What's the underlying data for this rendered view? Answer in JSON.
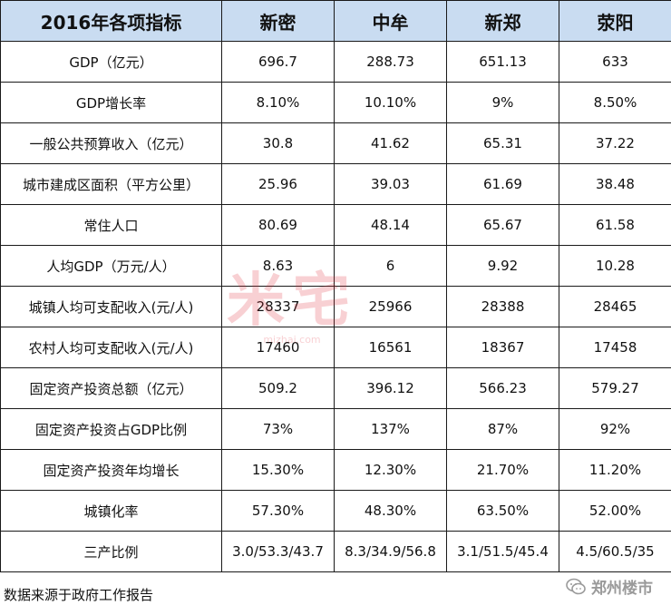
{
  "table": {
    "headers": [
      "2016年各项指标",
      "新密",
      "中牟",
      "新郑",
      "荥阳"
    ],
    "rows": [
      [
        "GDP（亿元）",
        "696.7",
        "288.73",
        "651.13",
        "633"
      ],
      [
        "GDP增长率",
        "8.10%",
        "10.10%",
        "9%",
        "8.50%"
      ],
      [
        "一般公共预算收入（亿元）",
        "30.8",
        "41.62",
        "65.31",
        "37.22"
      ],
      [
        "城市建成区面积（平方公里）",
        "25.96",
        "39.03",
        "61.69",
        "38.48"
      ],
      [
        "常住人口",
        "80.69",
        "48.14",
        "65.67",
        "61.58"
      ],
      [
        "人均GDP（万元/人）",
        "8.63",
        "6",
        "9.92",
        "10.28"
      ],
      [
        "城镇人均可支配收入(元/人)",
        "28337",
        "25966",
        "28388",
        "28465"
      ],
      [
        "农村人均可支配收入(元/人)",
        "17460",
        "16561",
        "18367",
        "17458"
      ],
      [
        "固定资产投资总额（亿元）",
        "509.2",
        "396.12",
        "566.23",
        "579.27"
      ],
      [
        "固定资产投资占GDP比例",
        "73%",
        "137%",
        "87%",
        "92%"
      ],
      [
        "固定资产投资年均增长",
        "15.30%",
        "12.30%",
        "21.70%",
        "11.20%"
      ],
      [
        "城镇化率",
        "57.30%",
        "48.30%",
        "63.50%",
        "52.00%"
      ],
      [
        "三产比例",
        "3.0/53.3/43.7",
        "8.3/34.9/56.8",
        "3.1/51.5/45.4",
        "4.5/60.5/35"
      ]
    ]
  },
  "footer": {
    "source_note": "数据来源于政府工作报告",
    "badge_label": "郑州楼市",
    "badge_icon": "wechat-icon"
  },
  "watermark": {
    "text": "米宅",
    "url": "mizhai.com"
  },
  "colors": {
    "header_bg": "#c9dcf1",
    "grid": "#1a1a1a",
    "watermark": "#e0303c"
  }
}
